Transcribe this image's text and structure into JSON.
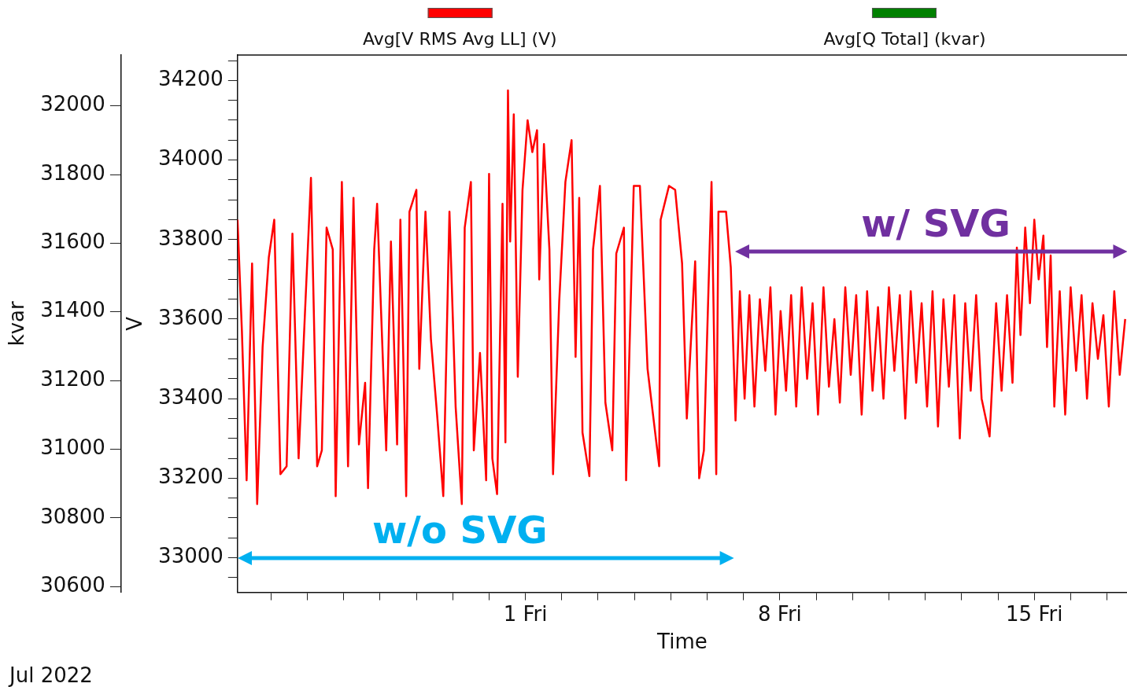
{
  "chart_data": {
    "type": "line",
    "xlabel": "Time",
    "ylabel": "V",
    "y2label": "kvar",
    "xlim": [
      -6.92,
      17.55
    ],
    "xticks": [
      {
        "value": -6,
        "label": null
      },
      {
        "value": -5,
        "label": null
      },
      {
        "value": -4,
        "label": null
      },
      {
        "value": -3,
        "label": null
      },
      {
        "value": -2,
        "label": null
      },
      {
        "value": -1,
        "label": null
      },
      {
        "value": 0,
        "label": null
      },
      {
        "value": 1,
        "label": "1 Fri"
      },
      {
        "value": 2,
        "label": null
      },
      {
        "value": 3,
        "label": null
      },
      {
        "value": 4,
        "label": null
      },
      {
        "value": 5,
        "label": null
      },
      {
        "value": 6,
        "label": null
      },
      {
        "value": 7,
        "label": null
      },
      {
        "value": 8,
        "label": "8 Fri"
      },
      {
        "value": 9,
        "label": null
      },
      {
        "value": 10,
        "label": null
      },
      {
        "value": 11,
        "label": null
      },
      {
        "value": 12,
        "label": null
      },
      {
        "value": 13,
        "label": null
      },
      {
        "value": 14,
        "label": null
      },
      {
        "value": 15,
        "label": "15 Fri"
      },
      {
        "value": 16,
        "label": null
      },
      {
        "value": 17,
        "label": null
      }
    ],
    "ylim": [
      32913,
      34264
    ],
    "yticks": [
      {
        "value": 32950,
        "label": null
      },
      33000,
      {
        "value": 33050,
        "label": null
      },
      {
        "value": 33100,
        "label": null
      },
      {
        "value": 33150,
        "label": null
      },
      33200,
      {
        "value": 33250,
        "label": null
      },
      {
        "value": 33300,
        "label": null
      },
      {
        "value": 33350,
        "label": null
      },
      33400,
      {
        "value": 33450,
        "label": null
      },
      {
        "value": 33500,
        "label": null
      },
      {
        "value": 33550,
        "label": null
      },
      33600,
      {
        "value": 33650,
        "label": null
      },
      {
        "value": 33700,
        "label": null
      },
      {
        "value": 33750,
        "label": null
      },
      33800,
      {
        "value": 33850,
        "label": null
      },
      {
        "value": 33900,
        "label": null
      },
      {
        "value": 33950,
        "label": null
      },
      34000,
      {
        "value": 34050,
        "label": null
      },
      {
        "value": 34100,
        "label": null
      },
      {
        "value": 34150,
        "label": null
      },
      34200,
      {
        "value": 34250,
        "label": null
      }
    ],
    "y2lim": [
      30583,
      32148
    ],
    "y2ticks": [
      30600,
      30800,
      31000,
      31200,
      31400,
      31600,
      31800,
      32000
    ],
    "grid": false,
    "legend": "top",
    "marker": "none",
    "line_style": "solid",
    "series": [
      {
        "name": "Avg[V RMS Avg LL] (V)",
        "color": "#ff0000",
        "x": [
          -6.92,
          -6.8,
          -6.67,
          -6.52,
          -6.38,
          -6.23,
          -6.06,
          -5.91,
          -5.74,
          -5.57,
          -5.41,
          -5.24,
          -5.07,
          -4.9,
          -4.73,
          -4.6,
          -4.47,
          -4.3,
          -4.22,
          -4.05,
          -3.88,
          -3.73,
          -3.58,
          -3.41,
          -3.33,
          -3.16,
          -3.08,
          -2.83,
          -2.7,
          -2.53,
          -2.44,
          -2.28,
          -2.19,
          -2.0,
          -1.92,
          -1.75,
          -1.6,
          -1.43,
          -1.26,
          -1.09,
          -0.92,
          -0.75,
          -0.67,
          -0.5,
          -0.42,
          -0.25,
          -0.08,
          0.0,
          0.09,
          0.22,
          0.37,
          0.45,
          0.52,
          0.58,
          0.68,
          0.79,
          0.92,
          1.06,
          1.19,
          1.32,
          1.38,
          1.51,
          1.66,
          1.76,
          1.93,
          2.1,
          2.27,
          2.38,
          2.48,
          2.57,
          2.76,
          2.86,
          3.05,
          3.2,
          3.39,
          3.5,
          3.71,
          3.77,
          3.98,
          4.15,
          4.36,
          4.51,
          4.68,
          4.72,
          4.95,
          5.12,
          5.31,
          5.44,
          5.67,
          5.78,
          5.91,
          6.12,
          6.25,
          6.31,
          6.52,
          6.65,
          6.78,
          6.9,
          7.03,
          7.16,
          7.3,
          7.45,
          7.6,
          7.74,
          7.88,
          8.02,
          8.17,
          8.31,
          8.45,
          8.6,
          8.75,
          8.9,
          9.05,
          9.2,
          9.35,
          9.5,
          9.65,
          9.8,
          9.95,
          10.1,
          10.25,
          10.4,
          10.55,
          10.7,
          10.85,
          11.0,
          11.15,
          11.3,
          11.45,
          11.6,
          11.75,
          11.9,
          12.05,
          12.2,
          12.35,
          12.5,
          12.65,
          12.8,
          12.95,
          13.1,
          13.25,
          13.4,
          13.55,
          13.77,
          13.95,
          14.1,
          14.25,
          14.4,
          14.52,
          14.62,
          14.75,
          14.88,
          15.0,
          15.12,
          15.25,
          15.35,
          15.45,
          15.55,
          15.7,
          15.85,
          16.0,
          16.15,
          16.3,
          16.45,
          16.6,
          16.75,
          16.9,
          17.05,
          17.2,
          17.35,
          17.5
        ],
        "values": [
          33850,
          33570,
          33195,
          33740,
          33135,
          33530,
          33755,
          33850,
          33210,
          33230,
          33815,
          33250,
          33605,
          33955,
          33230,
          33270,
          33830,
          33775,
          33155,
          33945,
          33230,
          33905,
          33285,
          33440,
          33175,
          33775,
          33890,
          33270,
          33795,
          33285,
          33850,
          33155,
          33870,
          33925,
          33475,
          33870,
          33550,
          33360,
          33155,
          33870,
          33380,
          33135,
          33830,
          33945,
          33270,
          33515,
          33195,
          33965,
          33250,
          33160,
          33890,
          33290,
          34175,
          33795,
          34115,
          33455,
          33925,
          34100,
          34020,
          34075,
          33700,
          34040,
          33775,
          33210,
          33645,
          33945,
          34050,
          33505,
          33905,
          33315,
          33205,
          33775,
          33935,
          33390,
          33270,
          33765,
          33830,
          33195,
          33935,
          33935,
          33475,
          33360,
          33230,
          33850,
          33935,
          33925,
          33740,
          33350,
          33745,
          33200,
          33270,
          33945,
          33210,
          33870,
          33870,
          33730,
          33345,
          33670,
          33400,
          33660,
          33380,
          33650,
          33470,
          33680,
          33360,
          33620,
          33420,
          33660,
          33380,
          33680,
          33450,
          33640,
          33360,
          33680,
          33430,
          33600,
          33390,
          33680,
          33460,
          33660,
          33360,
          33670,
          33420,
          33630,
          33400,
          33680,
          33470,
          33660,
          33350,
          33670,
          33440,
          33640,
          33380,
          33670,
          33330,
          33650,
          33430,
          33660,
          33300,
          33640,
          33420,
          33660,
          33400,
          33305,
          33640,
          33420,
          33660,
          33440,
          33780,
          33560,
          33830,
          33640,
          33850,
          33700,
          33810,
          33530,
          33760,
          33380,
          33670,
          33360,
          33680,
          33470,
          33660,
          33400,
          33640,
          33500,
          33610,
          33380,
          33670,
          33460,
          33600
        ]
      },
      {
        "name": "Avg[Q Total] (kvar)",
        "color": "#008000"
      }
    ],
    "annotations": [
      "w/o SVG",
      "w/ SVG",
      "Jul 2022"
    ]
  }
}
